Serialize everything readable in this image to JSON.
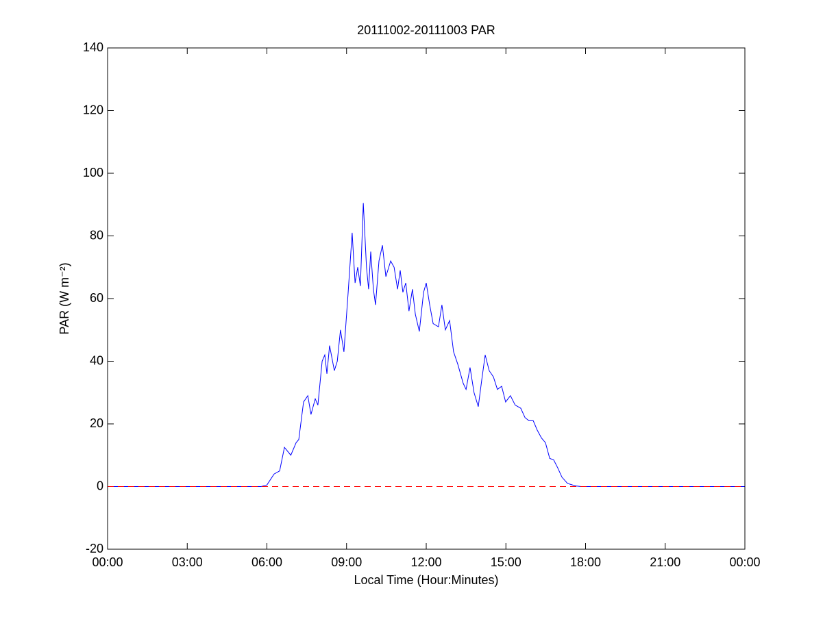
{
  "chart_data": {
    "type": "line",
    "title": "20111002-20111003 PAR",
    "x_label": "Local Time (Hour:Minutes)",
    "y_label": "PAR (W m⁻²)",
    "xlim": [
      0,
      24
    ],
    "xticks": [
      {
        "value": 0,
        "label": "00:00"
      },
      {
        "value": 3,
        "label": "03:00"
      },
      {
        "value": 6,
        "label": "06:00"
      },
      {
        "value": 9,
        "label": "09:00"
      },
      {
        "value": 12,
        "label": "12:00"
      },
      {
        "value": 15,
        "label": "15:00"
      },
      {
        "value": 18,
        "label": "18:00"
      },
      {
        "value": 21,
        "label": "21:00"
      },
      {
        "value": 24,
        "label": "00:00"
      }
    ],
    "ylim": [
      -20,
      140
    ],
    "yticks": [
      -20,
      0,
      20,
      40,
      60,
      80,
      100,
      120,
      140
    ],
    "grid": false,
    "series": [
      {
        "color": "#0000ff",
        "dashed": false,
        "x": [
          0,
          5.78,
          6.0,
          6.27,
          6.48,
          6.66,
          6.9,
          7.1,
          7.2,
          7.38,
          7.54,
          7.66,
          7.82,
          7.92,
          8.08,
          8.18,
          8.26,
          8.36,
          8.54,
          8.65,
          8.77,
          8.9,
          9.06,
          9.21,
          9.32,
          9.42,
          9.52,
          9.63,
          9.75,
          9.83,
          9.91,
          10.01,
          10.09,
          10.22,
          10.35,
          10.48,
          10.66,
          10.79,
          10.92,
          11.02,
          11.12,
          11.23,
          11.35,
          11.48,
          11.59,
          11.74,
          11.9,
          12.0,
          12.13,
          12.26,
          12.46,
          12.59,
          12.72,
          12.88,
          13.03,
          13.19,
          13.39,
          13.5,
          13.65,
          13.8,
          13.96,
          14.09,
          14.22,
          14.37,
          14.53,
          14.68,
          14.84,
          14.99,
          15.17,
          15.35,
          15.56,
          15.72,
          15.87,
          16.03,
          16.18,
          16.34,
          16.49,
          16.65,
          16.8,
          16.95,
          17.11,
          17.32,
          17.63,
          17.83,
          24
        ],
        "values": [
          0,
          0,
          0.5,
          4,
          5,
          12.5,
          10,
          14,
          15,
          27,
          29,
          23,
          28,
          26,
          40,
          42,
          36,
          45,
          37,
          40,
          50,
          43,
          62,
          81,
          65,
          70,
          64,
          90.5,
          70,
          63,
          75,
          63,
          58,
          72,
          77,
          67,
          72,
          70,
          63,
          69,
          62,
          65,
          56,
          63,
          55,
          49.5,
          62,
          65,
          58,
          52,
          51,
          58,
          50,
          53,
          43,
          39,
          33,
          31,
          38,
          30,
          25.5,
          34,
          42,
          37,
          35,
          31,
          32,
          27,
          29,
          26,
          25,
          22,
          21,
          21,
          18,
          15.5,
          14,
          9,
          8.5,
          6,
          3,
          1,
          0.2,
          0,
          0
        ]
      },
      {
        "color": "#ff0000",
        "dashed": true,
        "x": [
          0,
          24
        ],
        "values": [
          0,
          0
        ]
      }
    ]
  }
}
